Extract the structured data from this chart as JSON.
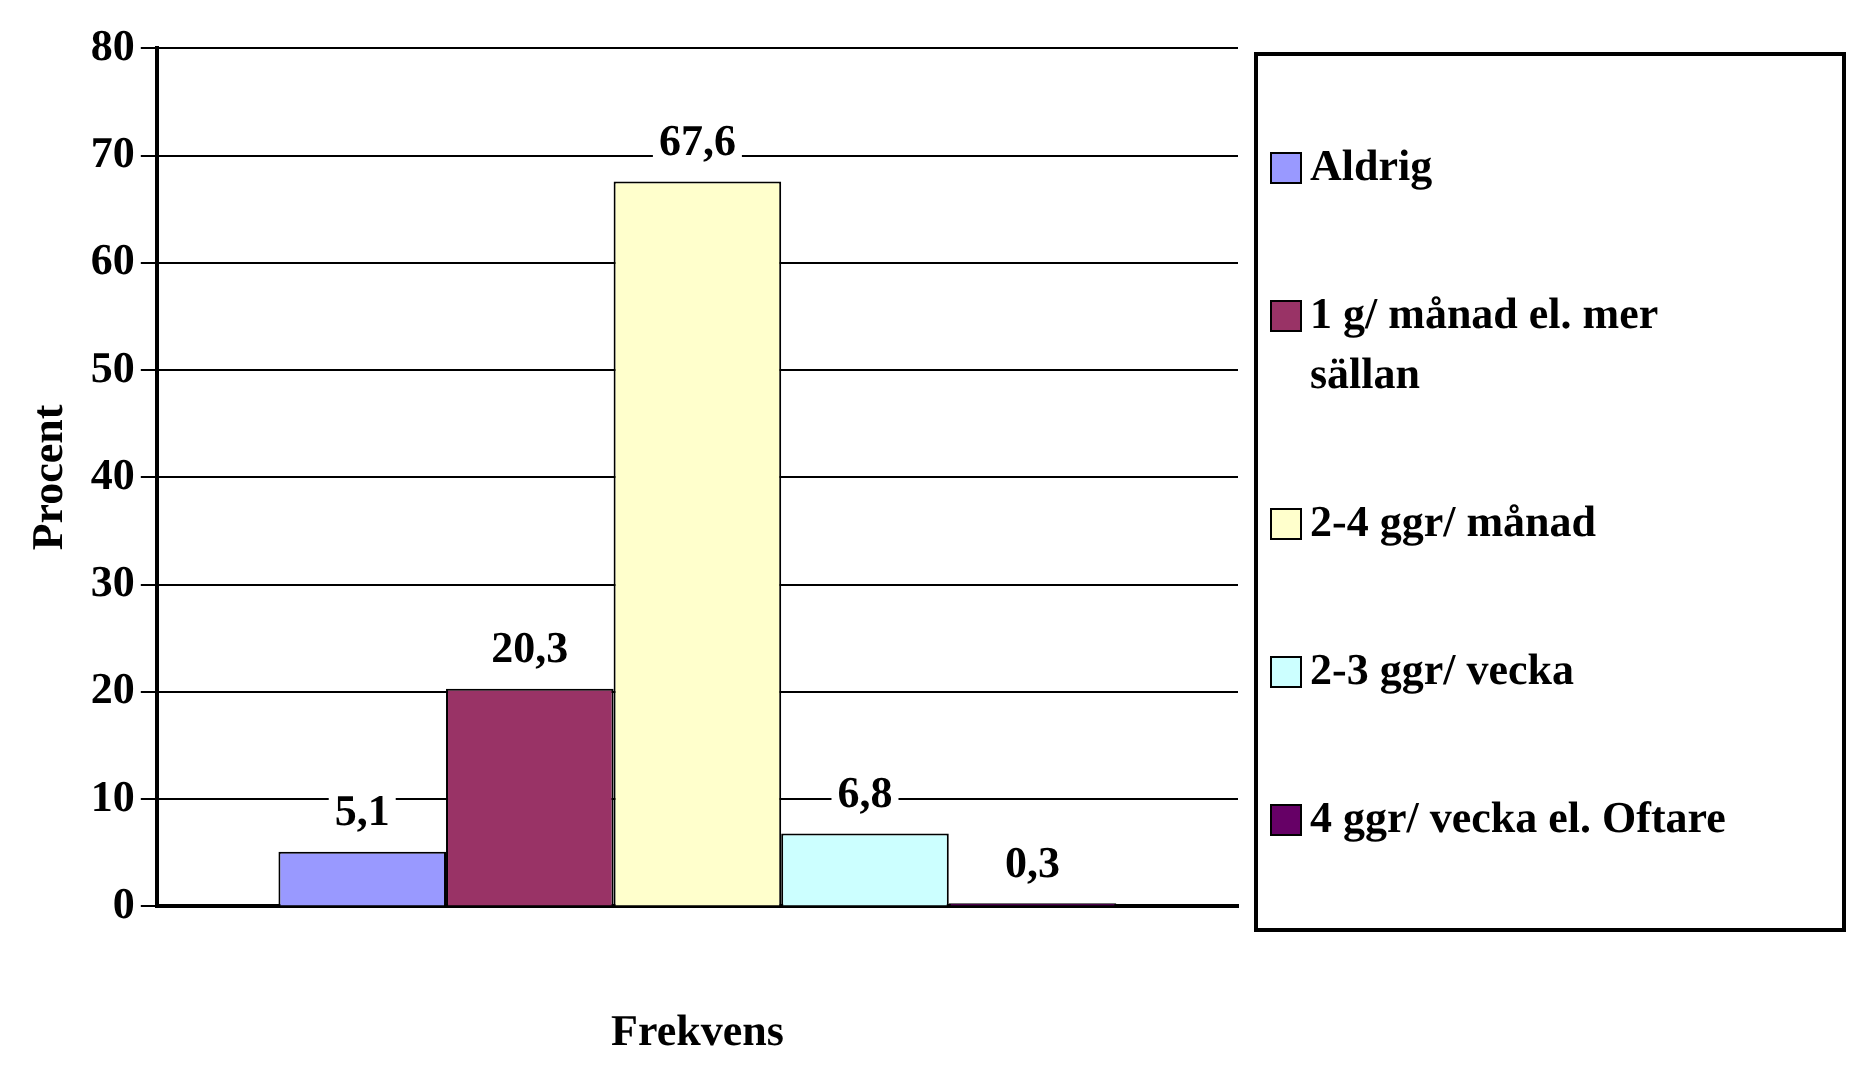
{
  "chart_data": {
    "type": "bar",
    "xlabel": "Frekvens",
    "ylabel": "Procent",
    "categories": [
      null
    ],
    "series": [
      {
        "name": "Aldrig",
        "color": "#9999ff",
        "values": [
          5.1
        ],
        "value_labels": [
          "5,1"
        ]
      },
      {
        "name": "1 g/ månad el. mer sällan",
        "color": "#993366",
        "values": [
          20.3
        ],
        "value_labels": [
          "20,3"
        ]
      },
      {
        "name": "2-4 ggr/ månad",
        "color": "#ffffcc",
        "values": [
          67.6
        ],
        "value_labels": [
          "67,6"
        ]
      },
      {
        "name": "2-3 ggr/ vecka",
        "color": "#ccffff",
        "values": [
          6.8
        ],
        "value_labels": [
          "6,8"
        ]
      },
      {
        "name": "4 ggr/ vecka el. Oftare",
        "color": "#660066",
        "values": [
          0.3
        ],
        "value_labels": [
          "0,3"
        ]
      }
    ],
    "ylim": [
      0,
      80
    ],
    "yticks": [
      0,
      10,
      20,
      30,
      40,
      50,
      60,
      70,
      80
    ],
    "grid": "y",
    "legend": "right"
  }
}
